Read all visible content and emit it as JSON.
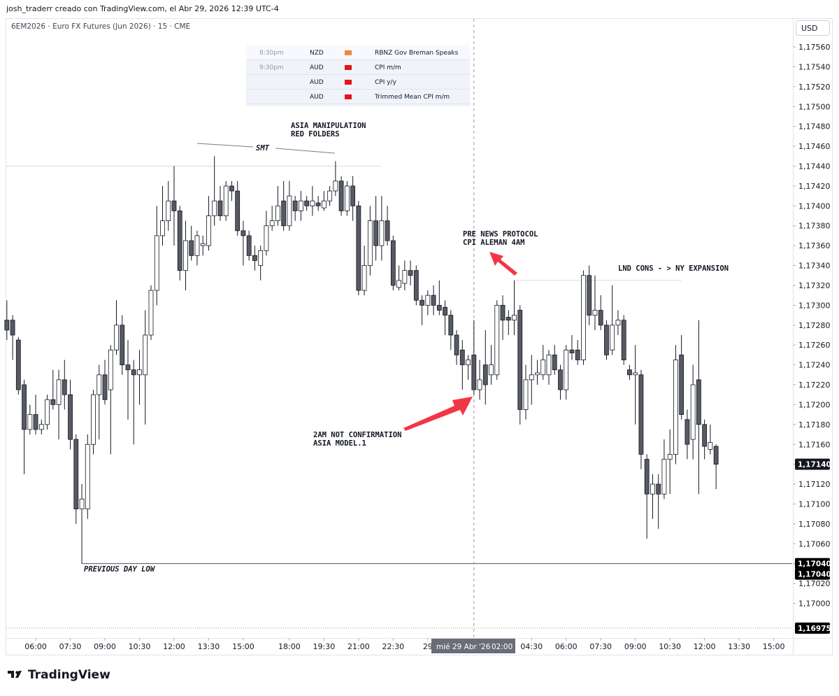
{
  "header": "josh_traderr creado con TradingView.com, el Abr 29, 2026 12:39 UTC-4",
  "footer": {
    "logo": "TradingView"
  },
  "calendar": {
    "rows": [
      {
        "time": "8:30pm",
        "currency": "NZD",
        "event": "RBNZ Gov Breman Speaks",
        "color": "#f0883a"
      },
      {
        "time": "9:30pm",
        "currency": "AUD",
        "event": "CPI m/m",
        "color": "#e0161a"
      },
      {
        "currency": "AUD",
        "event": "CPI y/y",
        "color": "#e0161a"
      },
      {
        "currency": "AUD",
        "event": "Trimmed Mean CPI m/m",
        "color": "#e0161a"
      }
    ]
  },
  "chart_data": {
    "type": "candlestick",
    "title": "6EM2026 · Euro FX Futures (Jun 2026) · 15 · CME",
    "currency": "USD",
    "up_color": "#ffffff",
    "down_color": "#575a63",
    "wick_color": "#131722",
    "grid": false,
    "ylim": [
      1.16968,
      1.17572
    ],
    "yticks": [
      {
        "value": 1.17,
        "label": "1,17000"
      },
      {
        "value": 1.1702,
        "label": "1,17020"
      },
      {
        "value": 1.1704,
        "label": "1,17040"
      },
      {
        "value": 1.1706,
        "label": "1,17060"
      },
      {
        "value": 1.1708,
        "label": "1,17080"
      },
      {
        "value": 1.171,
        "label": "1,17100"
      },
      {
        "value": 1.1712,
        "label": "1,17120"
      },
      {
        "value": 1.1714,
        "label": "1,17140"
      },
      {
        "value": 1.1716,
        "label": "1,17160"
      },
      {
        "value": 1.1718,
        "label": "1,17180"
      },
      {
        "value": 1.172,
        "label": "1,17200"
      },
      {
        "value": 1.1722,
        "label": "1,17220"
      },
      {
        "value": 1.1724,
        "label": "1,17240"
      },
      {
        "value": 1.1726,
        "label": "1,17260"
      },
      {
        "value": 1.1728,
        "label": "1,17280"
      },
      {
        "value": 1.173,
        "label": "1,17300"
      },
      {
        "value": 1.1732,
        "label": "1,17320"
      },
      {
        "value": 1.1734,
        "label": "1,17340"
      },
      {
        "value": 1.1736,
        "label": "1,17360"
      },
      {
        "value": 1.1738,
        "label": "1,17380"
      },
      {
        "value": 1.174,
        "label": "1,17400"
      },
      {
        "value": 1.1742,
        "label": "1,17420"
      },
      {
        "value": 1.1744,
        "label": "1,17440"
      },
      {
        "value": 1.1746,
        "label": "1,17460"
      },
      {
        "value": 1.1748,
        "label": "1,17480"
      },
      {
        "value": 1.175,
        "label": "1,17500"
      },
      {
        "value": 1.1752,
        "label": "1,17520"
      },
      {
        "value": 1.1754,
        "label": "1,17540"
      },
      {
        "value": 1.1756,
        "label": "1,17560"
      }
    ],
    "xlim": [
      -0.1,
      136.2
    ],
    "xticks": [
      {
        "value": 5,
        "label": "06:00"
      },
      {
        "value": 11,
        "label": "07:30"
      },
      {
        "value": 17,
        "label": "09:00"
      },
      {
        "value": 23,
        "label": "10:30"
      },
      {
        "value": 29,
        "label": "12:00"
      },
      {
        "value": 35,
        "label": "13:30"
      },
      {
        "value": 41,
        "label": "15:00"
      },
      {
        "value": 49,
        "label": "18:00"
      },
      {
        "value": 55,
        "label": "19:30"
      },
      {
        "value": 61,
        "label": "21:00"
      },
      {
        "value": 67,
        "label": "22:30"
      },
      {
        "value": 73,
        "label": "29"
      },
      {
        "value": 91,
        "label": "04:30"
      },
      {
        "value": 97,
        "label": "06:00"
      },
      {
        "value": 103,
        "label": "07:30"
      },
      {
        "value": 109,
        "label": "09:00"
      },
      {
        "value": 115,
        "label": "10:30"
      },
      {
        "value": 121,
        "label": "12:00"
      },
      {
        "value": 127,
        "label": "13:30"
      },
      {
        "value": 133,
        "label": "15:00"
      }
    ],
    "crosshair": {
      "value": 81,
      "date": "mié 29 Abr '26",
      "time": "02:00"
    },
    "ohlc": [
      [
        1.17285,
        1.17305,
        1.17265,
        1.17275
      ],
      [
        1.17285,
        1.1729,
        1.17245,
        1.1727
      ],
      [
        1.17265,
        1.17268,
        1.1721,
        1.17215
      ],
      [
        1.1722,
        1.17225,
        1.1713,
        1.17175
      ],
      [
        1.17175,
        1.172,
        1.1717,
        1.1719
      ],
      [
        1.1719,
        1.1721,
        1.1717,
        1.17175
      ],
      [
        1.17175,
        1.17185,
        1.1717,
        1.1718
      ],
      [
        1.1718,
        1.1721,
        1.17175,
        1.17205
      ],
      [
        1.17205,
        1.17235,
        1.17195,
        1.172
      ],
      [
        1.172,
        1.17235,
        1.17165,
        1.17225
      ],
      [
        1.17225,
        1.17245,
        1.17195,
        1.1721
      ],
      [
        1.1721,
        1.17225,
        1.17155,
        1.17165
      ],
      [
        1.17165,
        1.1717,
        1.1708,
        1.17095
      ],
      [
        1.17095,
        1.1712,
        1.1704,
        1.17105
      ],
      [
        1.17095,
        1.1717,
        1.17085,
        1.1716
      ],
      [
        1.1716,
        1.17215,
        1.1715,
        1.1721
      ],
      [
        1.1721,
        1.1724,
        1.17165,
        1.1723
      ],
      [
        1.1723,
        1.17245,
        1.172,
        1.17205
      ],
      [
        1.17215,
        1.1726,
        1.1715,
        1.17255
      ],
      [
        1.17255,
        1.17305,
        1.1725,
        1.1728
      ],
      [
        1.1728,
        1.1729,
        1.1723,
        1.1724
      ],
      [
        1.1724,
        1.17265,
        1.17185,
        1.17235
      ],
      [
        1.17235,
        1.17245,
        1.1716,
        1.1723
      ],
      [
        1.1723,
        1.17255,
        1.172,
        1.17235
      ],
      [
        1.1723,
        1.17295,
        1.1718,
        1.1727
      ],
      [
        1.1727,
        1.1732,
        1.17265,
        1.17315
      ],
      [
        1.17315,
        1.174,
        1.173,
        1.1737
      ],
      [
        1.1737,
        1.1742,
        1.1736,
        1.17385
      ],
      [
        1.17385,
        1.17425,
        1.17375,
        1.17405
      ],
      [
        1.17405,
        1.1744,
        1.1736,
        1.17395
      ],
      [
        1.17395,
        1.174,
        1.17325,
        1.17335
      ],
      [
        1.17335,
        1.17385,
        1.17315,
        1.17365
      ],
      [
        1.17365,
        1.1738,
        1.17345,
        1.1735
      ],
      [
        1.1735,
        1.17375,
        1.1734,
        1.1737
      ],
      [
        1.1736,
        1.1737,
        1.1735,
        1.17362
      ],
      [
        1.1736,
        1.1741,
        1.17355,
        1.1739
      ],
      [
        1.1739,
        1.1745,
        1.1738,
        1.17405
      ],
      [
        1.17405,
        1.1742,
        1.17385,
        1.1739
      ],
      [
        1.1739,
        1.17425,
        1.17385,
        1.1742
      ],
      [
        1.1742,
        1.17425,
        1.17405,
        1.17415
      ],
      [
        1.17415,
        1.17425,
        1.1737,
        1.17375
      ],
      [
        1.17375,
        1.17385,
        1.1734,
        1.1737
      ],
      [
        1.1737,
        1.17375,
        1.17345,
        1.1735
      ],
      [
        1.1735,
        1.1736,
        1.17335,
        1.17345
      ],
      [
        1.1734,
        1.1736,
        1.17325,
        1.17355
      ],
      [
        1.17355,
        1.17395,
        1.1735,
        1.1738
      ],
      [
        1.1738,
        1.174,
        1.17375,
        1.17385
      ],
      [
        1.17385,
        1.1742,
        1.1738,
        1.174
      ],
      [
        1.17405,
        1.17425,
        1.17375,
        1.1738
      ],
      [
        1.1738,
        1.17425,
        1.17375,
        1.1741
      ],
      [
        1.17405,
        1.1741,
        1.17385,
        1.17395
      ],
      [
        1.17395,
        1.17415,
        1.17385,
        1.17405
      ],
      [
        1.17405,
        1.1741,
        1.17395,
        1.174
      ],
      [
        1.174,
        1.1742,
        1.1739,
        1.17405
      ],
      [
        1.17403,
        1.1741,
        1.17395,
        1.174
      ],
      [
        1.17398,
        1.17415,
        1.17395,
        1.17405
      ],
      [
        1.17405,
        1.1742,
        1.174,
        1.17415
      ],
      [
        1.17415,
        1.17445,
        1.1741,
        1.17425
      ],
      [
        1.17425,
        1.1743,
        1.1739,
        1.17395
      ],
      [
        1.17395,
        1.17425,
        1.1739,
        1.1742
      ],
      [
        1.1742,
        1.1743,
        1.17385,
        1.174
      ],
      [
        1.174,
        1.17405,
        1.1731,
        1.17315
      ],
      [
        1.17315,
        1.1736,
        1.1731,
        1.1734
      ],
      [
        1.1734,
        1.174,
        1.1733,
        1.17385
      ],
      [
        1.17385,
        1.1741,
        1.17345,
        1.1736
      ],
      [
        1.1736,
        1.1741,
        1.17345,
        1.17385
      ],
      [
        1.17385,
        1.174,
        1.1736,
        1.17365
      ],
      [
        1.17365,
        1.1737,
        1.17315,
        1.1732
      ],
      [
        1.17318,
        1.1734,
        1.17315,
        1.17325
      ],
      [
        1.17322,
        1.17345,
        1.17315,
        1.17335
      ],
      [
        1.17335,
        1.17345,
        1.1732,
        1.1733
      ],
      [
        1.17335,
        1.1734,
        1.173,
        1.17305
      ],
      [
        1.17305,
        1.1731,
        1.1728,
        1.173
      ],
      [
        1.173,
        1.17315,
        1.1729,
        1.1731
      ],
      [
        1.1731,
        1.1732,
        1.1729,
        1.173
      ],
      [
        1.173,
        1.17325,
        1.1729,
        1.17295
      ],
      [
        1.17298,
        1.17305,
        1.1727,
        1.1729
      ],
      [
        1.1729,
        1.17295,
        1.17255,
        1.1727
      ],
      [
        1.1727,
        1.17275,
        1.1724,
        1.1725
      ],
      [
        1.17255,
        1.17265,
        1.17215,
        1.1724
      ],
      [
        1.1724,
        1.1725,
        1.17225,
        1.17245
      ],
      [
        1.1725,
        1.17285,
        1.1721,
        1.17215
      ],
      [
        1.17215,
        1.17245,
        1.17205,
        1.17225
      ],
      [
        1.1724,
        1.17275,
        1.172,
        1.1722
      ],
      [
        1.1723,
        1.1726,
        1.1722,
        1.1724
      ],
      [
        1.1723,
        1.17305,
        1.17225,
        1.173
      ],
      [
        1.173,
        1.1731,
        1.17265,
        1.17285
      ],
      [
        1.17288,
        1.17295,
        1.1727,
        1.17285
      ],
      [
        1.17285,
        1.17325,
        1.1727,
        1.1729
      ],
      [
        1.17295,
        1.173,
        1.1718,
        1.17195
      ],
      [
        1.17195,
        1.1724,
        1.17185,
        1.17225
      ],
      [
        1.17225,
        1.1725,
        1.172,
        1.1723
      ],
      [
        1.1723,
        1.17245,
        1.1722,
        1.17232
      ],
      [
        1.1723,
        1.1726,
        1.17225,
        1.17245
      ],
      [
        1.1723,
        1.17255,
        1.1722,
        1.1725
      ],
      [
        1.1725,
        1.1726,
        1.1723,
        1.17235
      ],
      [
        1.17235,
        1.1724,
        1.17205,
        1.17215
      ],
      [
        1.17215,
        1.1726,
        1.17205,
        1.17255
      ],
      [
        1.17255,
        1.1727,
        1.17245,
        1.17252
      ],
      [
        1.17255,
        1.17265,
        1.1724,
        1.17245
      ],
      [
        1.17245,
        1.17335,
        1.1724,
        1.1733
      ],
      [
        1.1733,
        1.1734,
        1.1728,
        1.1729
      ],
      [
        1.1729,
        1.1733,
        1.17275,
        1.17295
      ],
      [
        1.17295,
        1.1731,
        1.17275,
        1.1728
      ],
      [
        1.1728,
        1.17285,
        1.17245,
        1.1725
      ],
      [
        1.17255,
        1.1732,
        1.1725,
        1.1728
      ],
      [
        1.1728,
        1.17295,
        1.1727,
        1.17285
      ],
      [
        1.17285,
        1.1729,
        1.1724,
        1.17245
      ],
      [
        1.17235,
        1.1724,
        1.17225,
        1.1723
      ],
      [
        1.1723,
        1.1726,
        1.1718,
        1.17232
      ],
      [
        1.1723,
        1.17235,
        1.17135,
        1.1715
      ],
      [
        1.17145,
        1.1715,
        1.17065,
        1.1711
      ],
      [
        1.1711,
        1.1713,
        1.17085,
        1.1712
      ],
      [
        1.1712,
        1.1713,
        1.17075,
        1.1711
      ],
      [
        1.1711,
        1.17165,
        1.17105,
        1.17145
      ],
      [
        1.17145,
        1.17175,
        1.1711,
        1.1715
      ],
      [
        1.1715,
        1.1726,
        1.1714,
        1.17245
      ],
      [
        1.1725,
        1.1727,
        1.17185,
        1.1719
      ],
      [
        1.17185,
        1.17195,
        1.17145,
        1.1716
      ],
      [
        1.17165,
        1.1724,
        1.17145,
        1.1722
      ],
      [
        1.17225,
        1.17285,
        1.1711,
        1.1718
      ],
      [
        1.1718,
        1.17185,
        1.17145,
        1.17158
      ],
      [
        1.17155,
        1.1718,
        1.1715,
        1.17162
      ],
      [
        1.17158,
        1.1716,
        1.17115,
        1.1714
      ]
    ],
    "levels": [
      {
        "value": 1.1744,
        "style": "dotted"
      },
      {
        "value": 1.17325,
        "style": "dotted"
      },
      {
        "value": 1.1704,
        "style": "solid"
      },
      {
        "value": 1.16975,
        "style": "dotted"
      }
    ],
    "price_labels": [
      {
        "value": 1.1714,
        "label": "1,17140"
      },
      {
        "value": 1.1704,
        "label": "1,17040"
      },
      {
        "value": 1.1704,
        "label": "1,17040"
      },
      {
        "value": 1.16975,
        "label": "1,16975"
      }
    ],
    "annotations": [
      {
        "lines": [
          "ASIA MANIPULATION",
          "RED FOLDERS"
        ]
      },
      {
        "lines": [
          "SMT"
        ]
      },
      {
        "lines": [
          "PRE NEWS PROTOCOL",
          "CPI ALEMAN 4AM"
        ]
      },
      {
        "lines": [
          "LND CONS - > NY EXPANSION"
        ]
      },
      {
        "lines": [
          "2AM NOT CONFIRMATION",
          "ASIA MODEL.1"
        ]
      },
      {
        "lines": [
          "PREVIOUS DAY LOW"
        ]
      }
    ]
  }
}
